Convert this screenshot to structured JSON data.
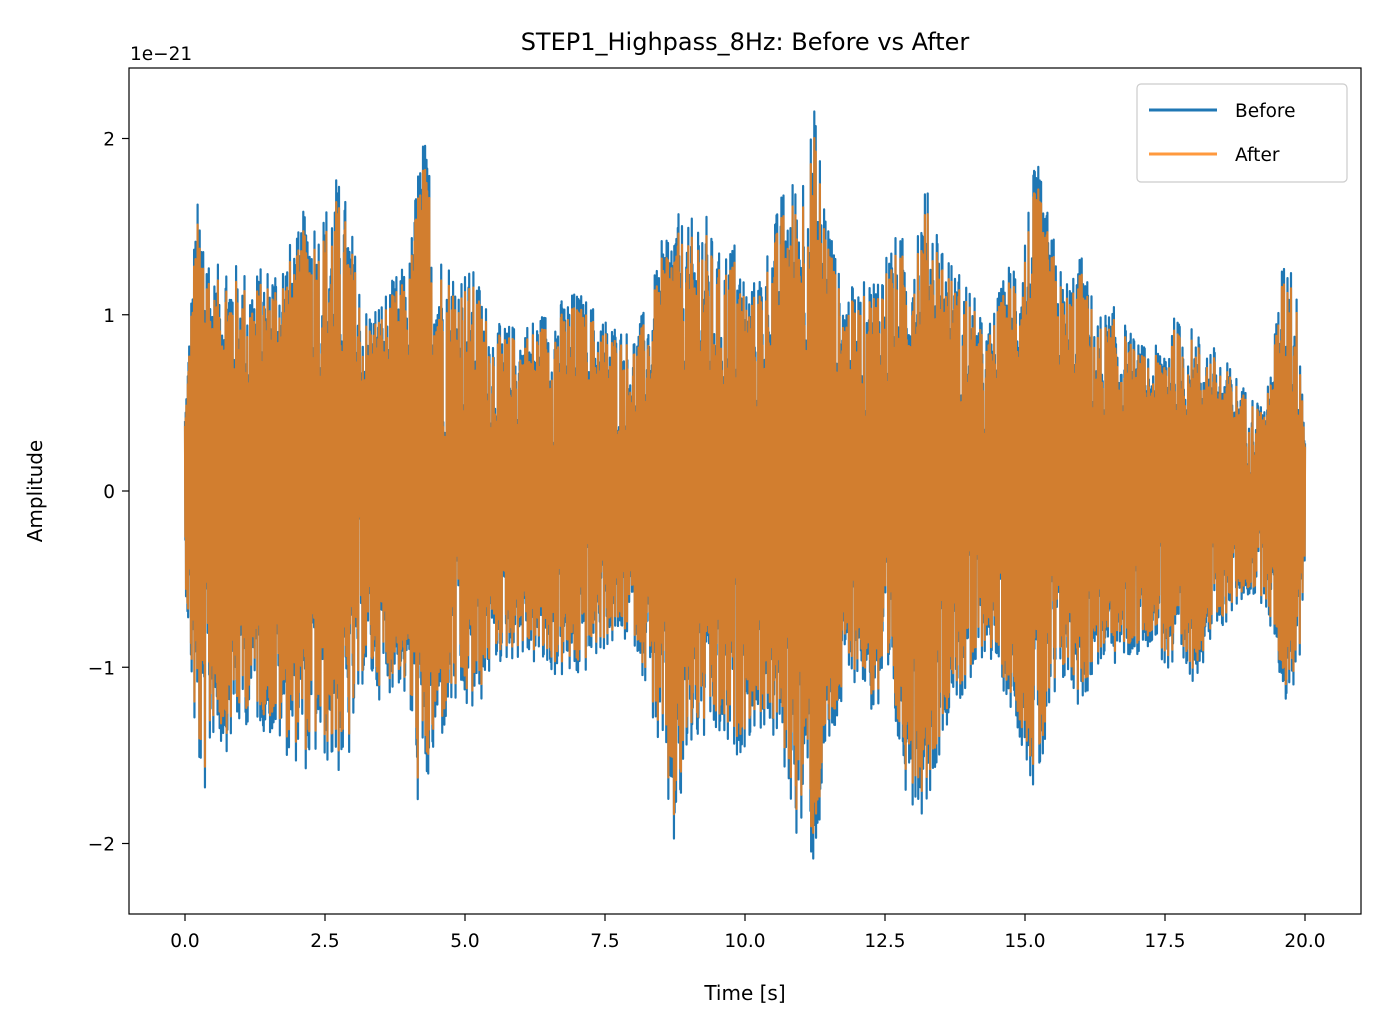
{
  "chart_data": {
    "type": "line",
    "title": "STEP1_Highpass_8Hz: Before vs After",
    "xlabel": "Time [s]",
    "ylabel": "Amplitude",
    "y_offset_label": "1e−21",
    "xlim": [
      -1.0,
      21.0
    ],
    "ylim": [
      -2.4,
      2.4
    ],
    "x_ticks": [
      0.0,
      2.5,
      5.0,
      7.5,
      10.0,
      12.5,
      15.0,
      17.5,
      20.0
    ],
    "x_tick_labels": [
      "0.0",
      "2.5",
      "5.0",
      "7.5",
      "10.0",
      "12.5",
      "15.0",
      "17.5",
      "20.0"
    ],
    "y_ticks": [
      -2,
      -1,
      0,
      1,
      2
    ],
    "y_tick_labels": [
      "−2",
      "−1",
      "0",
      "1",
      "2"
    ],
    "grid": false,
    "legend_position": "top-right",
    "x_range": [
      0.0,
      20.0
    ],
    "series": [
      {
        "name": "Before",
        "color": "#1f77b4",
        "envelope": [
          [
            0.0,
            0.5,
            -0.5
          ],
          [
            0.2,
            1.65,
            -1.55
          ],
          [
            0.35,
            1.65,
            -1.75
          ],
          [
            0.5,
            1.2,
            -1.4
          ],
          [
            0.7,
            1.4,
            -1.5
          ],
          [
            0.9,
            1.3,
            -1.4
          ],
          [
            1.2,
            1.25,
            -1.3
          ],
          [
            1.5,
            1.3,
            -1.4
          ],
          [
            1.8,
            1.4,
            -1.5
          ],
          [
            2.0,
            1.45,
            -1.55
          ],
          [
            2.2,
            1.7,
            -1.6
          ],
          [
            2.4,
            1.55,
            -1.5
          ],
          [
            2.7,
            1.8,
            -1.62
          ],
          [
            2.9,
            1.65,
            -1.6
          ],
          [
            3.2,
            1.05,
            -1.05
          ],
          [
            3.5,
            1.1,
            -1.2
          ],
          [
            3.8,
            1.25,
            -1.1
          ],
          [
            4.0,
            1.3,
            -1.25
          ],
          [
            4.2,
            2.05,
            -1.93
          ],
          [
            4.35,
            1.95,
            -1.7
          ],
          [
            4.5,
            1.4,
            -1.5
          ],
          [
            4.8,
            1.3,
            -1.25
          ],
          [
            5.2,
            1.25,
            -1.3
          ],
          [
            5.5,
            0.95,
            -1.0
          ],
          [
            6.0,
            0.95,
            -0.95
          ],
          [
            6.5,
            1.05,
            -1.05
          ],
          [
            7.0,
            1.15,
            -1.1
          ],
          [
            7.5,
            1.0,
            -0.9
          ],
          [
            8.0,
            0.9,
            -0.85
          ],
          [
            8.3,
            1.1,
            -1.2
          ],
          [
            8.6,
            1.55,
            -1.8
          ],
          [
            8.75,
            1.6,
            -2.12
          ],
          [
            9.0,
            1.5,
            -1.5
          ],
          [
            9.2,
            1.7,
            -1.45
          ],
          [
            9.5,
            1.35,
            -1.45
          ],
          [
            9.8,
            1.45,
            -1.55
          ],
          [
            10.1,
            1.15,
            -1.4
          ],
          [
            10.4,
            1.4,
            -1.35
          ],
          [
            10.7,
            1.75,
            -1.6
          ],
          [
            10.9,
            1.8,
            -1.95
          ],
          [
            11.1,
            1.95,
            -2.0
          ],
          [
            11.25,
            2.2,
            -2.2
          ],
          [
            11.4,
            1.8,
            -1.7
          ],
          [
            11.7,
            1.2,
            -1.3
          ],
          [
            12.0,
            1.15,
            -1.05
          ],
          [
            12.3,
            1.25,
            -1.3
          ],
          [
            12.6,
            1.45,
            -1.3
          ],
          [
            12.9,
            1.45,
            -1.75
          ],
          [
            13.2,
            1.75,
            -1.85
          ],
          [
            13.4,
            1.6,
            -1.6
          ],
          [
            13.7,
            1.3,
            -1.2
          ],
          [
            14.0,
            1.2,
            -1.2
          ],
          [
            14.3,
            0.9,
            -0.9
          ],
          [
            14.7,
            1.3,
            -1.2
          ],
          [
            15.0,
            1.55,
            -1.5
          ],
          [
            15.2,
            1.9,
            -1.8
          ],
          [
            15.4,
            1.6,
            -1.45
          ],
          [
            15.7,
            1.2,
            -1.1
          ],
          [
            16.0,
            1.35,
            -1.25
          ],
          [
            16.3,
            1.0,
            -1.0
          ],
          [
            16.6,
            1.05,
            -1.0
          ],
          [
            17.0,
            0.85,
            -0.95
          ],
          [
            17.3,
            0.8,
            -0.85
          ],
          [
            17.6,
            1.0,
            -1.1
          ],
          [
            17.9,
            0.95,
            -1.15
          ],
          [
            18.3,
            0.85,
            -0.9
          ],
          [
            18.7,
            0.7,
            -0.7
          ],
          [
            19.0,
            0.55,
            -0.6
          ],
          [
            19.3,
            0.5,
            -0.65
          ],
          [
            19.6,
            1.3,
            -1.15
          ],
          [
            19.7,
            1.47,
            -1.25
          ],
          [
            19.9,
            1.0,
            -1.0
          ],
          [
            20.0,
            0.45,
            -0.4
          ]
        ]
      },
      {
        "name": "After",
        "color": "#ff7f0e",
        "opacity": 0.8,
        "envelope_scale": 0.93
      }
    ]
  }
}
